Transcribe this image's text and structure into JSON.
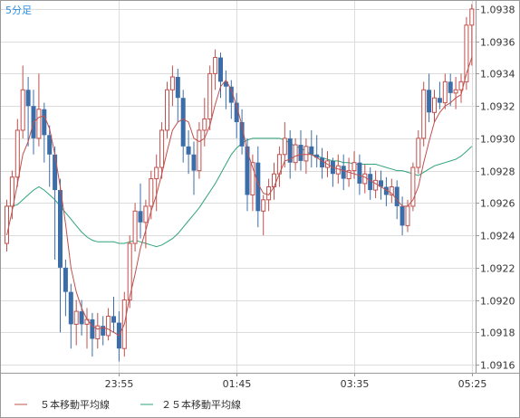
{
  "timeframe": "5分足",
  "legend": [
    {
      "label": "５本移動平均線",
      "color": "#c0504d"
    },
    {
      "label": "２５本移動平均線",
      "color": "#2ea37a"
    }
  ],
  "colors": {
    "up": "#c0504d",
    "down": "#3b6ea8",
    "grid": "#dcdcdc",
    "border": "#999999"
  },
  "chart_data": {
    "type": "candlestick",
    "ylim": [
      1.09155,
      1.09385
    ],
    "y_ticks": [
      "1.0916",
      "1.0918",
      "1.0920",
      "1.0922",
      "1.0924",
      "1.0926",
      "1.0928",
      "1.0930",
      "1.0932",
      "1.0934",
      "1.0936",
      "1.0938"
    ],
    "x_tick_labels": [
      "23:55",
      "01:45",
      "03:35",
      "05:25"
    ],
    "x_tick_indices": [
      21,
      43,
      65,
      87
    ],
    "candles": [
      [
        1.09235,
        1.09262,
        1.0923,
        1.09258
      ],
      [
        1.09258,
        1.0928,
        1.0925,
        1.09276
      ],
      [
        1.09276,
        1.09312,
        1.0927,
        1.09305
      ],
      [
        1.09305,
        1.09345,
        1.093,
        1.0933
      ],
      [
        1.0933,
        1.09338,
        1.09295,
        1.0932
      ],
      [
        1.0932,
        1.0933,
        1.0929,
        1.093
      ],
      [
        1.093,
        1.0934,
        1.09295,
        1.09318
      ],
      [
        1.09318,
        1.09322,
        1.09285,
        1.09302
      ],
      [
        1.09302,
        1.09308,
        1.0927,
        1.0929
      ],
      [
        1.0929,
        1.09295,
        1.09225,
        1.09268
      ],
      [
        1.09268,
        1.09275,
        1.0918,
        1.0922
      ],
      [
        1.0922,
        1.09225,
        1.0919,
        1.09205
      ],
      [
        1.09205,
        1.0921,
        1.0917,
        1.09185
      ],
      [
        1.09185,
        1.092,
        1.09172,
        1.09193
      ],
      [
        1.09193,
        1.092,
        1.09178,
        1.09185
      ],
      [
        1.09185,
        1.09195,
        1.0917,
        1.09188
      ],
      [
        1.09188,
        1.09192,
        1.09165,
        1.09176
      ],
      [
        1.09176,
        1.09192,
        1.0917,
        1.09184
      ],
      [
        1.09184,
        1.0919,
        1.09172,
        1.09178
      ],
      [
        1.09178,
        1.09195,
        1.09175,
        1.0919
      ],
      [
        1.0919,
        1.09202,
        1.0918,
        1.09186
      ],
      [
        1.09186,
        1.09193,
        1.09162,
        1.0917
      ],
      [
        1.0917,
        1.09205,
        1.09165,
        1.092
      ],
      [
        1.092,
        1.0924,
        1.09195,
        1.09235
      ],
      [
        1.09235,
        1.0926,
        1.0923,
        1.09255
      ],
      [
        1.09255,
        1.09272,
        1.09238,
        1.09248
      ],
      [
        1.09248,
        1.09262,
        1.09232,
        1.09258
      ],
      [
        1.09258,
        1.0928,
        1.0925,
        1.09275
      ],
      [
        1.09275,
        1.0929,
        1.09255,
        1.09282
      ],
      [
        1.09282,
        1.0931,
        1.09275,
        1.09305
      ],
      [
        1.09305,
        1.09335,
        1.093,
        1.0933
      ],
      [
        1.0933,
        1.09345,
        1.0932,
        1.09338
      ],
      [
        1.09338,
        1.09343,
        1.0931,
        1.09325
      ],
      [
        1.09325,
        1.0933,
        1.09285,
        1.09295
      ],
      [
        1.09295,
        1.09305,
        1.09278,
        1.0929
      ],
      [
        1.0929,
        1.09298,
        1.09265,
        1.0928
      ],
      [
        1.0928,
        1.0931,
        1.09275,
        1.09305
      ],
      [
        1.09305,
        1.09325,
        1.09295,
        1.09312
      ],
      [
        1.09312,
        1.09345,
        1.09305,
        1.0934
      ],
      [
        1.0934,
        1.09355,
        1.0933,
        1.0935
      ],
      [
        1.0935,
        1.09353,
        1.09325,
        1.09335
      ],
      [
        1.09335,
        1.09342,
        1.09318,
        1.09332
      ],
      [
        1.09332,
        1.09336,
        1.09312,
        1.09322
      ],
      [
        1.09322,
        1.09328,
        1.093,
        1.0931
      ],
      [
        1.0931,
        1.09318,
        1.0929,
        1.09295
      ],
      [
        1.09295,
        1.093,
        1.09255,
        1.09265
      ],
      [
        1.09265,
        1.0929,
        1.09255,
        1.09285
      ],
      [
        1.09285,
        1.09295,
        1.09245,
        1.09255
      ],
      [
        1.09255,
        1.09265,
        1.0924,
        1.09262
      ],
      [
        1.09262,
        1.09275,
        1.09255,
        1.0927
      ],
      [
        1.0927,
        1.09285,
        1.09262,
        1.09278
      ],
      [
        1.09278,
        1.09295,
        1.0927,
        1.0929
      ],
      [
        1.0929,
        1.0931,
        1.09282,
        1.093
      ],
      [
        1.093,
        1.09305,
        1.09275,
        1.09285
      ],
      [
        1.09285,
        1.093,
        1.0928,
        1.09296
      ],
      [
        1.09296,
        1.09305,
        1.0928,
        1.09286
      ],
      [
        1.09286,
        1.093,
        1.09278,
        1.09295
      ],
      [
        1.09295,
        1.09305,
        1.09282,
        1.0929
      ],
      [
        1.0929,
        1.09302,
        1.09282,
        1.09288
      ],
      [
        1.09288,
        1.09294,
        1.09275,
        1.09282
      ],
      [
        1.09282,
        1.09292,
        1.09276,
        1.09286
      ],
      [
        1.09286,
        1.09288,
        1.0927,
        1.09278
      ],
      [
        1.09278,
        1.0929,
        1.09272,
        1.09283
      ],
      [
        1.09283,
        1.0929,
        1.09268,
        1.09275
      ],
      [
        1.09275,
        1.09288,
        1.0927,
        1.0928
      ],
      [
        1.0928,
        1.09292,
        1.09275,
        1.09285
      ],
      [
        1.09285,
        1.0929,
        1.09265,
        1.09272
      ],
      [
        1.09272,
        1.09284,
        1.09266,
        1.09278
      ],
      [
        1.09278,
        1.09282,
        1.09262,
        1.09268
      ],
      [
        1.09268,
        1.0928,
        1.09263,
        1.09274
      ],
      [
        1.09274,
        1.0928,
        1.09262,
        1.0927
      ],
      [
        1.0927,
        1.09276,
        1.09258,
        1.09265
      ],
      [
        1.09265,
        1.09275,
        1.0926,
        1.0927
      ],
      [
        1.0927,
        1.09274,
        1.0925,
        1.09258
      ],
      [
        1.09258,
        1.09264,
        1.0924,
        1.09246
      ],
      [
        1.09246,
        1.09262,
        1.09242,
        1.09258
      ],
      [
        1.09258,
        1.09285,
        1.09255,
        1.09282
      ],
      [
        1.09282,
        1.09305,
        1.09278,
        1.093
      ],
      [
        1.093,
        1.09335,
        1.09295,
        1.0933
      ],
      [
        1.0933,
        1.0934,
        1.0931,
        1.09316
      ],
      [
        1.09316,
        1.0933,
        1.0931,
        1.09325
      ],
      [
        1.09325,
        1.09335,
        1.09318,
        1.09322
      ],
      [
        1.09322,
        1.0934,
        1.09318,
        1.09335
      ],
      [
        1.09335,
        1.0934,
        1.0932,
        1.09328
      ],
      [
        1.09328,
        1.09338,
        1.09318,
        1.0933
      ],
      [
        1.0933,
        1.0934,
        1.09322,
        1.09335
      ],
      [
        1.09335,
        1.09375,
        1.0933,
        1.0937
      ],
      [
        1.0937,
        1.09383,
        1.09345,
        1.0938
      ]
    ],
    "series": [
      {
        "name": "５本移動平均線",
        "values": [
          1.0924,
          1.09255,
          1.09272,
          1.0929,
          1.09298,
          1.0931,
          1.09313,
          1.09314,
          1.09306,
          1.0929,
          1.0927,
          1.09247,
          1.0922,
          1.09205,
          1.09195,
          1.09188,
          1.09184,
          1.09182,
          1.09183,
          1.09182,
          1.0918,
          1.09178,
          1.09185,
          1.09202,
          1.09216,
          1.09232,
          1.09243,
          1.09255,
          1.09265,
          1.09278,
          1.09292,
          1.09305,
          1.0931,
          1.09312,
          1.0931,
          1.093,
          1.09298,
          1.093,
          1.09308,
          1.09321,
          1.09332,
          1.09336,
          1.0933,
          1.0932,
          1.09308,
          1.09292,
          1.09282,
          1.09272,
          1.09266,
          1.09265,
          1.0927,
          1.09278,
          1.09286,
          1.09287,
          1.09289,
          1.0929,
          1.0929,
          1.0929,
          1.09288,
          1.09286,
          1.09284,
          1.09282,
          1.09281,
          1.0928,
          1.09279,
          1.09278,
          1.09277,
          1.09276,
          1.09274,
          1.09272,
          1.0927,
          1.09268,
          1.09266,
          1.09262,
          1.09258,
          1.09258,
          1.09262,
          1.0927,
          1.09285,
          1.09298,
          1.0931,
          1.09316,
          1.0932,
          1.09322,
          1.09325,
          1.09327,
          1.0934,
          1.0935
        ]
      },
      {
        "name": "２５本移動平均線",
        "values": [
          1.09258,
          1.09258,
          1.09259,
          1.09262,
          1.09265,
          1.09268,
          1.0927,
          1.09268,
          1.09265,
          1.09262,
          1.09258,
          1.09254,
          1.0925,
          1.09246,
          1.09242,
          1.09239,
          1.09237,
          1.09236,
          1.09236,
          1.09236,
          1.09236,
          1.09235,
          1.09235,
          1.09236,
          1.09237,
          1.09236,
          1.09235,
          1.09234,
          1.09233,
          1.09234,
          1.09236,
          1.09238,
          1.09241,
          1.09245,
          1.09249,
          1.09253,
          1.09257,
          1.09262,
          1.09267,
          1.09272,
          1.09278,
          1.09284,
          1.0929,
          1.09294,
          1.09297,
          1.09299,
          1.093,
          1.093,
          1.093,
          1.093,
          1.093,
          1.093,
          1.09299,
          1.09297,
          1.09295,
          1.09294,
          1.09292,
          1.0929,
          1.09289,
          1.09288,
          1.09287,
          1.09286,
          1.09286,
          1.09285,
          1.09285,
          1.09284,
          1.09284,
          1.09284,
          1.09284,
          1.09284,
          1.09283,
          1.09282,
          1.09281,
          1.0928,
          1.0928,
          1.09279,
          1.09278,
          1.09277,
          1.09279,
          1.09281,
          1.09283,
          1.09284,
          1.09285,
          1.09286,
          1.09287,
          1.09289,
          1.09292,
          1.09295
        ]
      }
    ]
  }
}
